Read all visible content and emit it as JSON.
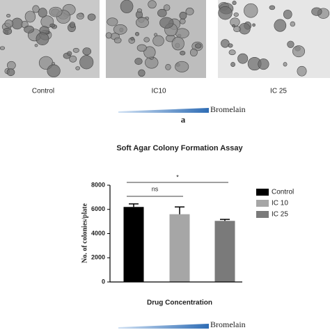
{
  "figure": {
    "panel_labels": [
      "Control",
      "IC10",
      "IC 25"
    ],
    "gradient_label": "Bromelain",
    "panel_letter": "a"
  },
  "chart_data": {
    "type": "bar",
    "title": "Soft Agar Colony Formation Assay",
    "ylabel": "No. of colonies/plate",
    "xlabel": "Drug Concentration",
    "categories": [
      null
    ],
    "series": [
      {
        "name": "Control",
        "color": "#000000",
        "values": [
          6200
        ],
        "errors": [
          250
        ]
      },
      {
        "name": "IC 10",
        "color": "#a6a6a6",
        "values": [
          5600
        ],
        "errors": [
          600
        ]
      },
      {
        "name": "IC 25",
        "color": "#7a7a7a",
        "values": [
          5050
        ],
        "errors": [
          120
        ]
      }
    ],
    "ylim": [
      0,
      8000
    ],
    "yticks": [
      0,
      2000,
      4000,
      6000,
      8000
    ],
    "annotations": [
      {
        "text": "ns",
        "from": "Control",
        "to": "IC 10"
      },
      {
        "text": "*",
        "from": "Control",
        "to": "IC 25"
      }
    ],
    "legend": "right",
    "gradient_label": "Bromelain"
  }
}
